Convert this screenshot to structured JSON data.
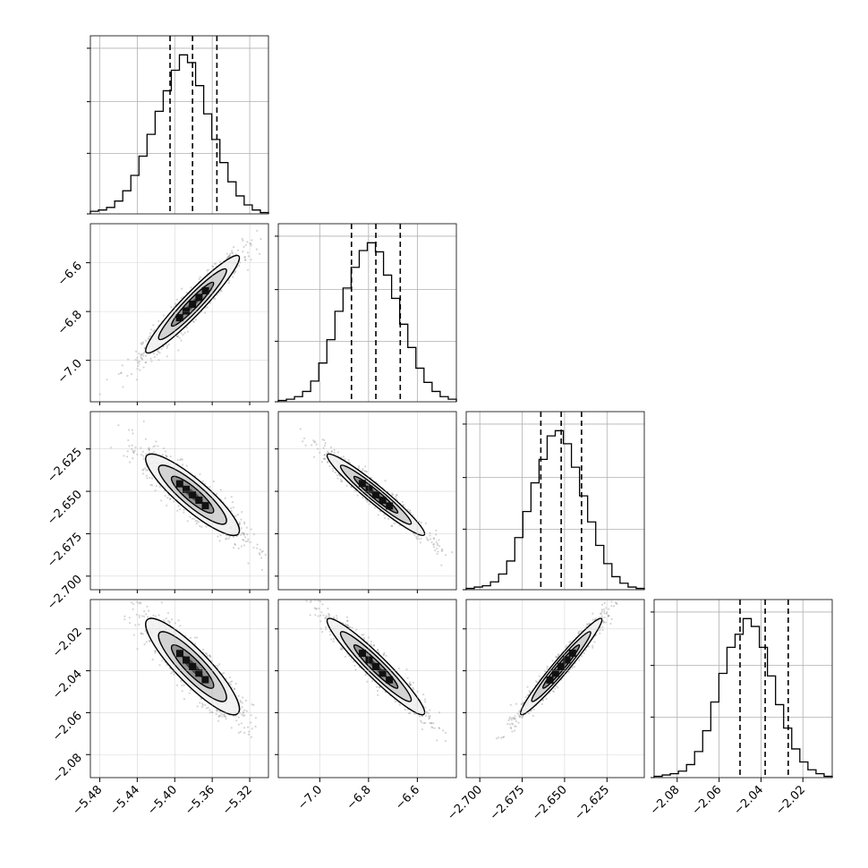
{
  "chart_data": {
    "type": "corner",
    "parameters": [
      {
        "index": 0,
        "range": [
          -5.49,
          -5.3
        ],
        "quantiles": [
          -5.405,
          -5.381,
          -5.355
        ],
        "ticks": [
          -5.48,
          -5.44,
          -5.4,
          -5.36,
          -5.32
        ],
        "tick_labels": [
          "−5.48",
          "−5.44",
          "−5.40",
          "−5.36",
          "−5.32"
        ]
      },
      {
        "index": 1,
        "range": [
          -7.17,
          -6.44
        ],
        "quantiles": [
          -6.87,
          -6.77,
          -6.67
        ],
        "ticks": [
          -7.0,
          -6.8,
          -6.6
        ],
        "tick_labels": [
          "−7.0",
          "−6.8",
          "−6.6"
        ]
      },
      {
        "index": 2,
        "range": [
          -2.708,
          -2.603
        ],
        "quantiles": [
          -2.664,
          -2.652,
          -2.64
        ],
        "ticks": [
          -2.7,
          -2.675,
          -2.65,
          -2.625
        ],
        "tick_labels": [
          "−2.700",
          "−2.675",
          "−2.650",
          "−2.625"
        ]
      },
      {
        "index": 3,
        "range": [
          -2.091,
          -2.006
        ],
        "quantiles": [
          -2.05,
          -2.038,
          -2.027
        ],
        "ticks": [
          -2.08,
          -2.06,
          -2.04,
          -2.02
        ],
        "tick_labels": [
          "−2.08",
          "−2.06",
          "−2.04",
          "−2.02"
        ]
      }
    ],
    "histograms": [
      [
        2,
        3,
        5,
        10,
        18,
        30,
        45,
        62,
        80,
        96,
        112,
        124,
        118,
        100,
        78,
        58,
        40,
        25,
        14,
        7,
        3,
        1
      ],
      [
        1,
        2,
        4,
        8,
        16,
        30,
        48,
        70,
        88,
        104,
        117,
        123,
        116,
        98,
        80,
        60,
        42,
        26,
        15,
        8,
        4,
        2
      ],
      [
        1,
        2,
        3,
        6,
        12,
        22,
        40,
        60,
        82,
        100,
        118,
        122,
        112,
        94,
        72,
        52,
        34,
        20,
        10,
        5,
        2,
        1
      ],
      [
        1,
        2,
        3,
        5,
        10,
        20,
        36,
        58,
        80,
        100,
        110,
        122,
        116,
        100,
        78,
        56,
        38,
        22,
        12,
        6,
        3,
        1
      ]
    ],
    "correlations": {
      "1-0": 0.95,
      "2-0": -0.88,
      "2-1": -0.96,
      "3-0": -0.88,
      "3-1": -0.95,
      "3-2": 0.97
    },
    "grid": true,
    "colors": {
      "contour": "#000000",
      "scatter": "#888888",
      "quantile_line": "#000000"
    }
  }
}
